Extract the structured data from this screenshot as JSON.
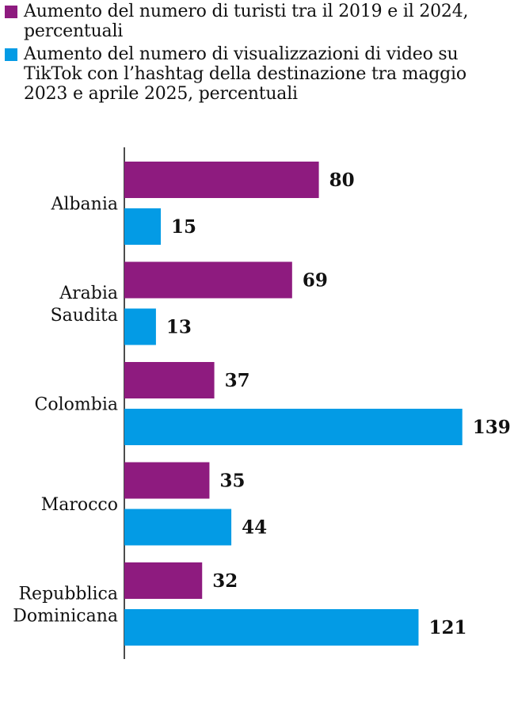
{
  "chart_data": {
    "type": "bar",
    "orientation": "horizontal",
    "categories": [
      [
        "Albania"
      ],
      [
        "Arabia",
        "Saudita"
      ],
      [
        "Colombia"
      ],
      [
        "Marocco"
      ],
      [
        "Repubblica",
        "Dominicana"
      ]
    ],
    "series": [
      {
        "name": "Aumento del numero di turisti tra il 2019 e il 2024, percentuali",
        "color": "#8e1b7f",
        "values": [
          80,
          69,
          37,
          35,
          32
        ]
      },
      {
        "name": "Aumento del numero di visualizzazioni di video su TikTok con l’hashtag della destinazione tra maggio 2023 e aprile 2025, percentuali",
        "color": "#039be5",
        "values": [
          15,
          13,
          139,
          44,
          121
        ]
      }
    ],
    "xlim": [
      0,
      139
    ],
    "grid": false,
    "legend": "top-left"
  }
}
